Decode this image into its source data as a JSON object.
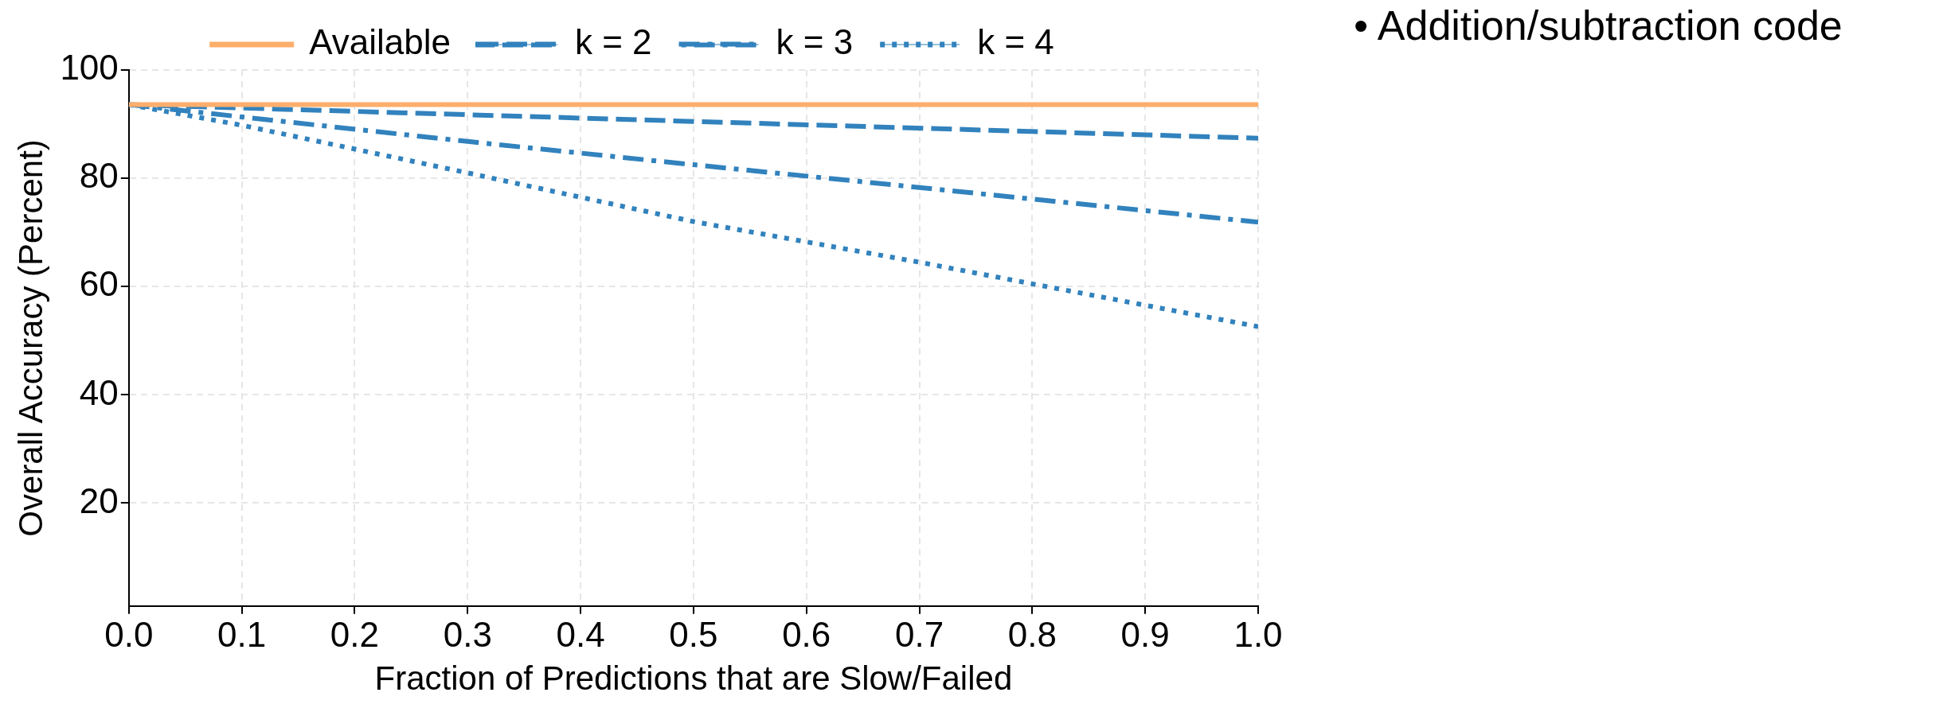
{
  "chart_data": {
    "type": "line",
    "xlabel": "Fraction of Predictions that are Slow/Failed",
    "ylabel": "Overall Accuracy (Percent)",
    "annotations": [
      "• Addition/subtraction code"
    ],
    "xlim": [
      0,
      1
    ],
    "xticks": [
      {
        "value": 0,
        "label": "0.0"
      },
      0.1,
      0.2,
      0.3,
      0.4,
      0.5,
      0.6,
      0.7,
      0.8,
      0.9,
      {
        "value": 1,
        "label": "1.0"
      }
    ],
    "ylim": [
      1,
      100
    ],
    "yticks": [
      20,
      40,
      60,
      80,
      100
    ],
    "grid": true,
    "legend": "top",
    "marker": "none",
    "series": [
      {
        "name": "Available",
        "color": "#fdae6b",
        "line_style": "solid",
        "x": [
          0,
          1
        ],
        "values": [
          93.6,
          93.6
        ]
      },
      {
        "name": "k = 2",
        "color": "#3182bd",
        "line_style": "dashed",
        "x": [
          0,
          0.5,
          1
        ],
        "values": [
          93.6,
          90.5,
          87.4
        ]
      },
      {
        "name": "k = 3",
        "color": "#3182bd",
        "line_style": "dashdot",
        "x": [
          0,
          0.3,
          0.5,
          0.7,
          1
        ],
        "values": [
          93.6,
          86.8,
          82.5,
          78.3,
          71.9
        ]
      },
      {
        "name": "k = 4",
        "color": "#3182bd",
        "line_style": "dotted",
        "x": [
          0,
          0.1,
          0.3,
          0.5,
          0.7,
          0.8,
          1
        ],
        "values": [
          93.6,
          89.8,
          81.0,
          72.0,
          64.5,
          60.5,
          52.6
        ]
      }
    ]
  }
}
